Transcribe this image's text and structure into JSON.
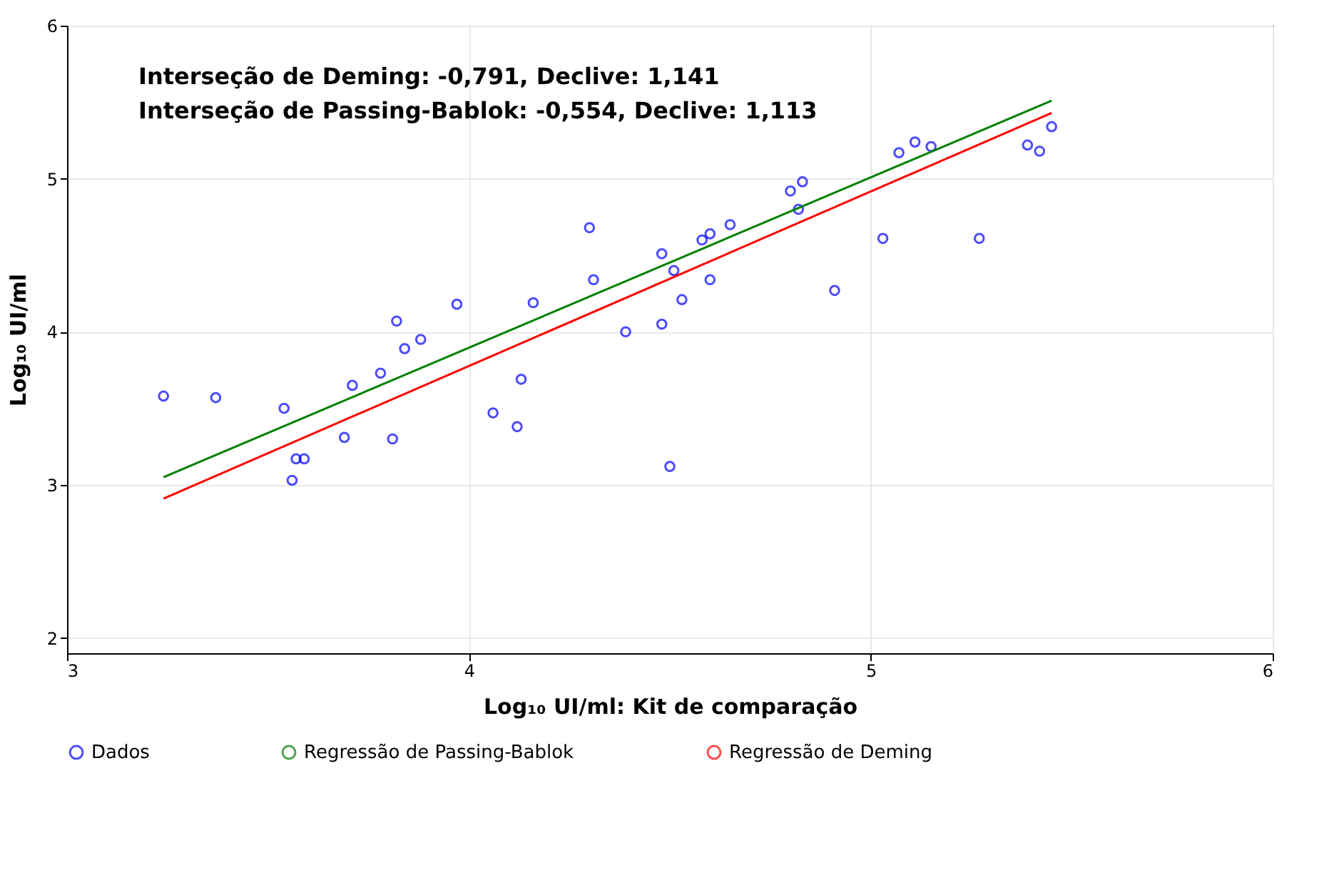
{
  "chart_data": {
    "type": "scatter",
    "xlabel": "Log₁₀ UI/ml: Kit de comparação",
    "ylabel": "Log₁₀ UI/ml",
    "annotations": [
      "Interseção de Deming: -0,791, Declive: 1,141",
      "Interseção de Passing-Bablok: -0,554, Declive: 1,113"
    ],
    "xlim": [
      3,
      6
    ],
    "ylim": [
      1.9,
      6
    ],
    "xticks": [
      3,
      4,
      5,
      6
    ],
    "yticks": [
      2,
      3,
      4,
      5,
      6
    ],
    "grid": true,
    "legend": "bottom",
    "marker": "circle",
    "series": [
      {
        "name": "Dados",
        "color": "#0000ff",
        "x": [
          3.24,
          3.37,
          3.54,
          3.56,
          3.57,
          3.59,
          3.69,
          3.71,
          3.78,
          3.81,
          3.82,
          3.84,
          3.88,
          3.97,
          4.06,
          4.12,
          4.13,
          4.16,
          4.3,
          4.31,
          4.39,
          4.48,
          4.48,
          4.5,
          4.51,
          4.53,
          4.58,
          4.6,
          4.6,
          4.65,
          4.8,
          4.82,
          4.83,
          4.91,
          5.03,
          5.07,
          5.11,
          5.15,
          5.27,
          5.39,
          5.42,
          5.45
        ],
        "values": [
          3.58,
          3.57,
          3.5,
          3.03,
          3.17,
          3.17,
          3.31,
          3.65,
          3.73,
          3.3,
          4.07,
          3.89,
          3.95,
          4.18,
          3.47,
          3.38,
          3.69,
          4.19,
          4.68,
          4.34,
          4.0,
          4.05,
          4.51,
          3.12,
          4.4,
          4.21,
          4.6,
          4.64,
          4.34,
          4.7,
          4.92,
          4.8,
          4.98,
          4.27,
          4.61,
          5.17,
          5.24,
          5.21,
          4.61,
          5.22,
          5.18,
          5.34
        ]
      },
      {
        "name": "Regressão de Passing-Bablok",
        "type": "line",
        "marker": "none",
        "line_style": "solid",
        "color": "#008000",
        "x": [
          3.24,
          5.45
        ],
        "values": [
          3.05,
          5.51
        ]
      },
      {
        "name": "Regressão de Deming",
        "type": "line",
        "marker": "none",
        "line_style": "solid",
        "color": "#ff0000",
        "x": [
          3.24,
          5.45
        ],
        "values": [
          2.91,
          5.43
        ]
      }
    ]
  }
}
